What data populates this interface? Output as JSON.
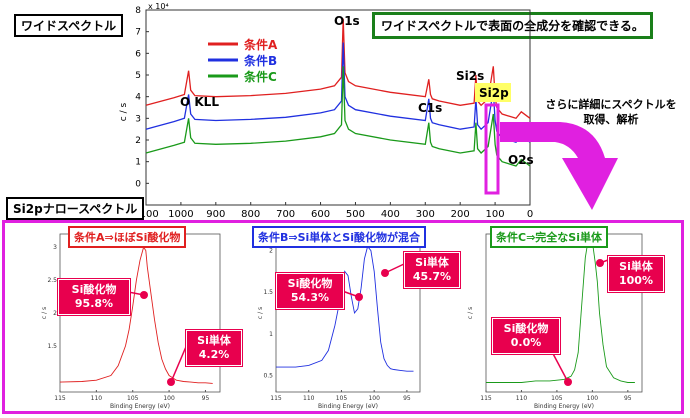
{
  "labels": {
    "wide_title": "ワイドスペクトル",
    "wide_note": "ワイドスペクトルで表面の全成分を確認できる。",
    "detail_line1": "さらに詳細にスペクトルを",
    "detail_line2": "取得、解析",
    "narrow_title": "Si2pナロースペクトル"
  },
  "colors": {
    "A": "#e02020",
    "B": "#2030e0",
    "C": "#1a9a1a",
    "magenta": "#e020e0",
    "callout": "#e8004e"
  },
  "chart_data": [
    {
      "type": "line",
      "title": "",
      "xlabel": "",
      "ylabel": "c / s",
      "y_multiplier": "x 10⁴",
      "xlim": [
        1100,
        0
      ],
      "x_reversed": true,
      "ylim": [
        -1,
        8
      ],
      "x_ticks": [
        "1100",
        "1000",
        "900",
        "800",
        "700",
        "600",
        "500",
        "400",
        "300",
        "200",
        "100",
        "0"
      ],
      "y_ticks": [
        "-1",
        "0",
        "1",
        "2",
        "3",
        "4",
        "5",
        "6",
        "7",
        "8"
      ],
      "annotations": [
        "O KLL",
        "O1s",
        "C1s",
        "Si2s",
        "Si2p",
        "O2s"
      ],
      "series": [
        {
          "name": "条件A",
          "offset": 2.2,
          "x": [
            1100,
            1020,
            990,
            978,
            972,
            960,
            900,
            800,
            700,
            600,
            560,
            540,
            535,
            530,
            520,
            500,
            400,
            300,
            290,
            285,
            280,
            260,
            200,
            160,
            155,
            150,
            140,
            120,
            105,
            100,
            95,
            80,
            40,
            25,
            0
          ],
          "y": [
            3.6,
            3.95,
            4.1,
            5.2,
            4.3,
            4.05,
            4.0,
            4.05,
            4.15,
            4.35,
            4.5,
            4.9,
            7.6,
            5.1,
            4.7,
            4.5,
            4.2,
            4.0,
            4.8,
            4.1,
            3.9,
            3.8,
            3.6,
            3.7,
            5.0,
            3.8,
            3.6,
            3.9,
            5.4,
            4.0,
            3.5,
            3.2,
            3.0,
            3.3,
            3.0
          ]
        },
        {
          "name": "条件B",
          "offset": 1.1,
          "x": [
            1100,
            1020,
            990,
            978,
            972,
            960,
            900,
            800,
            700,
            600,
            560,
            540,
            535,
            530,
            520,
            500,
            400,
            300,
            290,
            285,
            280,
            260,
            200,
            160,
            155,
            150,
            140,
            120,
            105,
            100,
            95,
            80,
            40,
            25,
            0
          ],
          "y": [
            2.5,
            2.85,
            3.0,
            4.1,
            3.2,
            2.95,
            2.9,
            2.95,
            3.05,
            3.25,
            3.4,
            3.8,
            6.5,
            4.0,
            3.6,
            3.4,
            3.1,
            2.9,
            3.9,
            3.0,
            2.8,
            2.7,
            2.5,
            2.6,
            3.9,
            2.7,
            2.5,
            2.8,
            4.3,
            2.9,
            2.4,
            2.1,
            1.9,
            2.2,
            1.9
          ]
        },
        {
          "name": "条件C",
          "offset": 0,
          "x": [
            1100,
            1020,
            990,
            978,
            972,
            960,
            900,
            800,
            700,
            600,
            560,
            540,
            535,
            530,
            520,
            500,
            400,
            300,
            290,
            285,
            280,
            260,
            200,
            160,
            155,
            150,
            140,
            120,
            105,
            100,
            95,
            80,
            40,
            25,
            0
          ],
          "y": [
            1.4,
            1.75,
            1.9,
            3.0,
            2.1,
            1.85,
            1.8,
            1.85,
            1.95,
            2.15,
            2.3,
            2.7,
            5.4,
            2.9,
            2.5,
            2.3,
            2.0,
            1.8,
            2.8,
            1.9,
            1.7,
            1.6,
            1.4,
            1.5,
            2.8,
            1.6,
            1.4,
            1.7,
            3.2,
            1.8,
            1.3,
            1.0,
            0.8,
            1.1,
            0.8
          ]
        }
      ]
    },
    {
      "type": "line",
      "title": "条件A⇒ほぼSi酸化物",
      "xlabel": "Binding Energy (eV)",
      "ylabel": "c / s",
      "xlim": [
        115,
        93
      ],
      "x_ticks": [
        "115",
        "110",
        "105",
        "100",
        "95"
      ],
      "y_ticks": [
        "1.5",
        "2",
        "2.5",
        "3"
      ],
      "ylim": [
        0.8,
        3.2
      ],
      "color": "#e02020",
      "x": [
        115,
        112,
        110,
        108,
        107,
        106,
        105.5,
        105,
        104.5,
        104,
        103.5,
        103.2,
        103,
        102.5,
        102,
        101.5,
        101,
        100.5,
        100,
        99,
        98,
        97,
        96,
        95,
        94
      ],
      "y": [
        0.95,
        0.96,
        0.98,
        1.05,
        1.2,
        1.5,
        1.75,
        2.1,
        2.5,
        2.8,
        3.0,
        2.95,
        2.7,
        2.3,
        1.9,
        1.55,
        1.3,
        1.15,
        1.05,
        0.98,
        0.96,
        0.95,
        0.94,
        0.94,
        0.93
      ],
      "callouts": [
        {
          "label": "Si酸化物",
          "value": "95.8%"
        },
        {
          "label": "Si単体",
          "value": "4.2%"
        }
      ]
    },
    {
      "type": "line",
      "title": "条件B⇒Si単体とSi酸化物が混合",
      "xlabel": "Binding Energy (eV)",
      "ylabel": "c / s",
      "xlim": [
        115,
        93
      ],
      "x_ticks": [
        "115",
        "110",
        "105",
        "100",
        "95"
      ],
      "y_ticks": [
        "0.5",
        "1",
        "1.5",
        "2"
      ],
      "ylim": [
        0.3,
        2.2
      ],
      "color": "#2030e0",
      "x": [
        115,
        112,
        110,
        108,
        107,
        106,
        105,
        104.5,
        104,
        103.5,
        103,
        102.5,
        102,
        101.5,
        101,
        100.5,
        100,
        99.5,
        99,
        98.5,
        98,
        97.5,
        97,
        96,
        95,
        94
      ],
      "y": [
        0.6,
        0.6,
        0.62,
        0.68,
        0.8,
        1.1,
        1.5,
        1.75,
        1.7,
        1.45,
        1.25,
        1.3,
        1.55,
        1.9,
        2.05,
        2.0,
        1.75,
        1.3,
        0.9,
        0.7,
        0.62,
        0.58,
        0.57,
        0.56,
        0.55,
        0.55
      ],
      "callouts": [
        {
          "label": "Si酸化物",
          "value": "54.3%"
        },
        {
          "label": "Si単体",
          "value": "45.7%"
        }
      ]
    },
    {
      "type": "line",
      "title": "条件C⇒完全なSi単体",
      "xlabel": "Binding Energy (eV)",
      "ylabel": "c / s",
      "xlim": [
        115,
        93
      ],
      "x_ticks": [
        "115",
        "110",
        "105",
        "100",
        "95"
      ],
      "y_ticks": [],
      "ylim": [
        0.0,
        1.0
      ],
      "color": "#1a9a1a",
      "x": [
        115,
        112,
        110,
        108,
        106,
        104,
        103,
        102.5,
        102,
        101.5,
        101,
        100.6,
        100.3,
        100,
        99.6,
        99.3,
        99,
        98.5,
        98,
        97,
        96,
        95,
        94
      ],
      "y": [
        0.06,
        0.06,
        0.06,
        0.07,
        0.07,
        0.08,
        0.1,
        0.14,
        0.25,
        0.55,
        0.85,
        0.96,
        1.0,
        0.95,
        0.82,
        0.7,
        0.5,
        0.3,
        0.16,
        0.09,
        0.07,
        0.06,
        0.06
      ],
      "callouts": [
        {
          "label": "Si単体",
          "value": "100%"
        },
        {
          "label": "Si酸化物",
          "value": "0.0%"
        }
      ]
    }
  ]
}
